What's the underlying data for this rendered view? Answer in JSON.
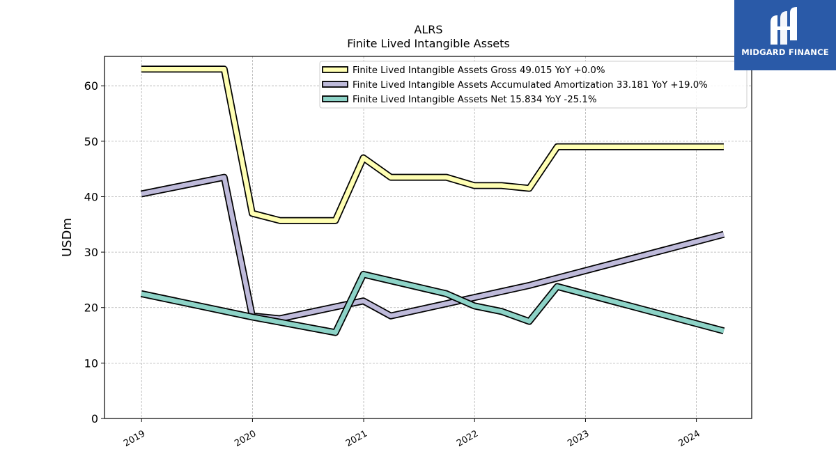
{
  "brand": {
    "name": "MIDGARD FINANCE",
    "icon": "midgard-logo-icon",
    "background": "#2a5aa8"
  },
  "chart_data": {
    "type": "line",
    "title": "ALRS",
    "subtitle": "Finite Lived Intangible Assets",
    "ylabel": "USDm",
    "xlabel": "",
    "xlim": [
      "2018-09-01",
      "2024-07-01"
    ],
    "ylim": [
      0,
      65.3
    ],
    "yticks": [
      0,
      10,
      20,
      30,
      40,
      50,
      60
    ],
    "xticks": [
      {
        "label": "2019",
        "date": "2019-01-01"
      },
      {
        "label": "2020",
        "date": "2020-01-01"
      },
      {
        "label": "2021",
        "date": "2021-01-01"
      },
      {
        "label": "2022",
        "date": "2022-01-01"
      },
      {
        "label": "2023",
        "date": "2023-01-01"
      },
      {
        "label": "2024",
        "date": "2024-01-01"
      }
    ],
    "grid": true,
    "legend_position": "top-right",
    "series": [
      {
        "name": "Finite Lived Intangible Assets Gross  49.015 YoY +0.0%",
        "color": "#ffffb3",
        "points": [
          [
            "2018-12-31",
            63.0
          ],
          [
            "2019-09-30",
            63.0
          ],
          [
            "2019-12-31",
            37.0
          ],
          [
            "2020-03-31",
            35.7
          ],
          [
            "2020-09-30",
            35.7
          ],
          [
            "2020-12-31",
            47.0
          ],
          [
            "2021-03-31",
            43.5
          ],
          [
            "2021-09-30",
            43.5
          ],
          [
            "2021-12-31",
            42.0
          ],
          [
            "2022-03-31",
            42.0
          ],
          [
            "2022-06-30",
            41.5
          ],
          [
            "2022-09-30",
            49.0
          ],
          [
            "2024-03-31",
            49.0
          ]
        ]
      },
      {
        "name": "Finite Lived Intangible Assets Accumulated Amortization  33.181 YoY +19.0%",
        "color": "#bebada",
        "points": [
          [
            "2018-12-31",
            40.5
          ],
          [
            "2019-09-30",
            43.5
          ],
          [
            "2019-12-31",
            18.5
          ],
          [
            "2020-03-31",
            18.0
          ],
          [
            "2020-12-31",
            21.2
          ],
          [
            "2021-03-31",
            18.5
          ],
          [
            "2022-06-30",
            24.0
          ],
          [
            "2024-03-31",
            33.2
          ]
        ]
      },
      {
        "name": "Finite Lived Intangible Assets Net  15.834 YoY -25.1%",
        "color": "#8dd3c7",
        "points": [
          [
            "2018-12-31",
            22.5
          ],
          [
            "2019-12-31",
            18.3
          ],
          [
            "2020-09-30",
            15.5
          ],
          [
            "2020-12-31",
            26.0
          ],
          [
            "2021-09-30",
            22.5
          ],
          [
            "2021-12-31",
            20.3
          ],
          [
            "2022-03-31",
            19.3
          ],
          [
            "2022-06-30",
            17.5
          ],
          [
            "2022-09-30",
            23.8
          ],
          [
            "2024-03-31",
            15.8
          ]
        ]
      }
    ]
  }
}
